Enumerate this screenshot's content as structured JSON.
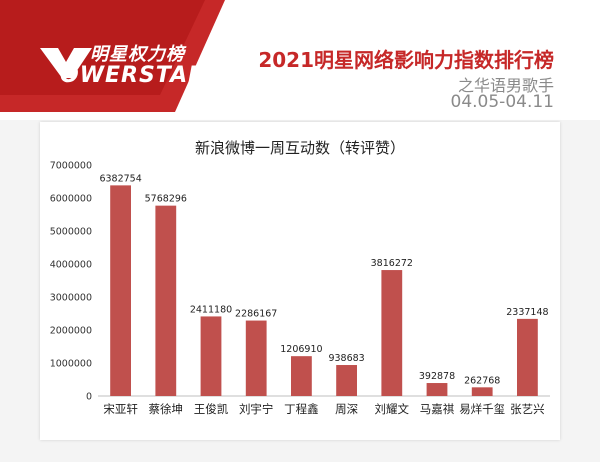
{
  "header": {
    "logo_cn": "明星权力榜",
    "logo_en": "OWERSTAR",
    "title": "2021明星网络影响力指数排行榜",
    "subtitle": "之华语男歌手",
    "date_range": "04.05-04.11"
  },
  "colors": {
    "accent": "#c62828",
    "bar": "#c0504d"
  },
  "chart_data": {
    "type": "bar",
    "title": "新浪微博一周互动数（转评赞）",
    "categories": [
      "宋亚轩",
      "蔡徐坤",
      "王俊凯",
      "刘宇宁",
      "丁程鑫",
      "周深",
      "刘耀文",
      "马嘉祺",
      "易烊千玺",
      "张艺兴"
    ],
    "values": [
      6382754,
      5768296,
      2411180,
      2286167,
      1206910,
      938683,
      3816272,
      392878,
      262768,
      2337148
    ],
    "yticks": [
      0,
      1000000,
      2000000,
      3000000,
      4000000,
      5000000,
      6000000,
      7000000
    ],
    "ylim": [
      0,
      7000000
    ],
    "xlabel": "",
    "ylabel": ""
  }
}
